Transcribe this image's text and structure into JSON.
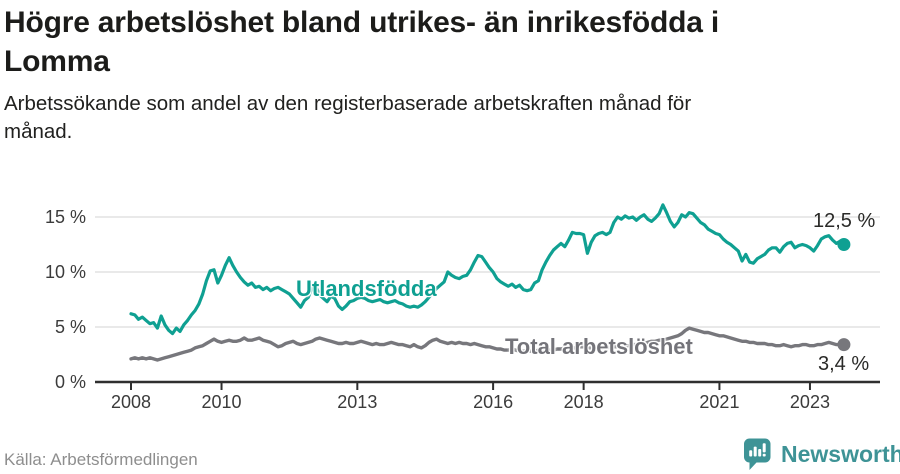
{
  "title": "Högre arbetslöshet bland utrikes- än inrikesfödda i\nLomma",
  "subtitle": "Arbetssökande som andel av den registerbaserade arbetskraften månad för\nmånad.",
  "source": "Källa: Arbetsförmedlingen",
  "branding": {
    "name": "Newsworthy",
    "icon": "newsworthy-bar-chart-bubble-icon",
    "color": "#3e9396"
  },
  "colors": {
    "foreign_born_accent": "#0fa092",
    "total_gray": "#77777c",
    "grid": "#dcdcdc",
    "axis": "#2f2f2f",
    "axis_text": "#3b3b3b",
    "value_text": "#2a2a28"
  },
  "chart_data": {
    "type": "line",
    "title": "Högre arbetslöshet bland utrikes- än inrikesfödda i Lomma",
    "xlabel": "",
    "ylabel": "Arbetssökande som andel av den registerbaserade arbetskraften",
    "x_monthly_start": "2008-01",
    "x_monthly_end": "2023-10",
    "x_tick_years": [
      2008,
      2010,
      2013,
      2016,
      2018,
      2021,
      2023
    ],
    "x_tick_labels": [
      "2008",
      "2010",
      "2013",
      "2016",
      "2018",
      "2021",
      "2023"
    ],
    "y_ticks": [
      0,
      5,
      10,
      15
    ],
    "y_tick_labels": [
      "0 %",
      "5 %",
      "10 %",
      "15 %"
    ],
    "ylim": [
      0,
      16.5
    ],
    "grid": "horizontal",
    "series": [
      {
        "name": "Utlandsfödda",
        "color": "#0fa092",
        "end_label": "12,5 %",
        "latest_value": 12.5,
        "values": [
          6.2,
          6.1,
          5.7,
          5.9,
          5.6,
          5.3,
          5.4,
          4.9,
          6.0,
          5.2,
          4.7,
          4.4,
          4.9,
          4.6,
          5.2,
          5.6,
          6.1,
          6.5,
          7.1,
          8.0,
          9.2,
          10.1,
          10.2,
          9.0,
          9.7,
          10.6,
          11.3,
          10.6,
          10.0,
          9.5,
          9.1,
          8.8,
          9.0,
          8.6,
          8.7,
          8.4,
          8.6,
          8.3,
          8.5,
          8.6,
          8.4,
          8.2,
          8.0,
          7.6,
          7.2,
          6.8,
          7.4,
          7.7,
          8.6,
          8.7,
          7.9,
          7.6,
          7.3,
          7.8,
          7.6,
          6.9,
          6.6,
          6.9,
          7.3,
          7.4,
          7.6,
          7.7,
          7.6,
          7.4,
          7.3,
          7.4,
          7.5,
          7.3,
          7.2,
          7.3,
          7.4,
          7.2,
          7.1,
          6.9,
          6.8,
          6.9,
          6.8,
          7.0,
          7.3,
          7.7,
          8.1,
          8.5,
          8.8,
          9.1,
          10.0,
          9.7,
          9.5,
          9.4,
          9.6,
          9.7,
          10.2,
          10.9,
          11.5,
          11.4,
          10.9,
          10.4,
          10.0,
          9.4,
          9.1,
          8.9,
          8.7,
          8.9,
          8.6,
          8.8,
          8.4,
          8.3,
          8.4,
          9.0,
          9.2,
          10.2,
          10.9,
          11.5,
          12.0,
          12.3,
          12.6,
          12.3,
          12.9,
          13.6,
          13.5,
          13.5,
          13.4,
          11.7,
          12.7,
          13.3,
          13.5,
          13.6,
          13.4,
          13.6,
          14.5,
          15.0,
          14.8,
          15.1,
          14.9,
          15.0,
          14.7,
          15.0,
          15.2,
          14.8,
          14.6,
          14.9,
          15.3,
          16.1,
          15.4,
          14.6,
          14.1,
          14.5,
          15.2,
          15.0,
          15.4,
          15.3,
          14.9,
          14.5,
          14.3,
          13.9,
          13.7,
          13.5,
          13.4,
          13.0,
          12.7,
          12.5,
          12.2,
          11.9,
          11.0,
          11.6,
          10.9,
          10.8,
          11.2,
          11.4,
          11.6,
          12.0,
          12.2,
          12.2,
          11.8,
          12.3,
          12.6,
          12.7,
          12.2,
          12.4,
          12.5,
          12.4,
          12.2,
          11.9,
          12.4,
          13.0,
          13.2,
          13.3,
          12.9,
          12.6,
          12.8,
          12.5
        ]
      },
      {
        "name": "Total arbetslöshet",
        "color": "#77777c",
        "end_label": "3,4 %",
        "latest_value": 3.4,
        "values": [
          2.1,
          2.2,
          2.1,
          2.2,
          2.1,
          2.2,
          2.1,
          2.0,
          2.1,
          2.2,
          2.3,
          2.4,
          2.5,
          2.6,
          2.7,
          2.8,
          2.9,
          3.1,
          3.2,
          3.3,
          3.5,
          3.7,
          3.9,
          3.7,
          3.6,
          3.7,
          3.8,
          3.7,
          3.7,
          3.8,
          4.0,
          3.8,
          3.8,
          3.9,
          4.0,
          3.8,
          3.7,
          3.6,
          3.4,
          3.2,
          3.3,
          3.5,
          3.6,
          3.7,
          3.5,
          3.4,
          3.5,
          3.6,
          3.7,
          3.9,
          4.0,
          3.9,
          3.8,
          3.7,
          3.6,
          3.5,
          3.5,
          3.6,
          3.5,
          3.5,
          3.6,
          3.7,
          3.6,
          3.5,
          3.4,
          3.5,
          3.4,
          3.4,
          3.5,
          3.6,
          3.5,
          3.4,
          3.4,
          3.3,
          3.2,
          3.4,
          3.2,
          3.1,
          3.3,
          3.6,
          3.8,
          3.9,
          3.7,
          3.6,
          3.5,
          3.6,
          3.5,
          3.6,
          3.5,
          3.5,
          3.4,
          3.5,
          3.4,
          3.3,
          3.2,
          3.2,
          3.1,
          3.0,
          3.0,
          2.9,
          2.9,
          3.0,
          2.9,
          2.8,
          2.8,
          2.9,
          2.8,
          2.8,
          2.9,
          2.9,
          3.0,
          2.9,
          2.9,
          3.0,
          3.0,
          3.1,
          3.0,
          3.1,
          3.1,
          3.2,
          3.2,
          3.1,
          3.1,
          3.0,
          3.1,
          3.1,
          3.2,
          3.1,
          3.2,
          3.2,
          3.3,
          3.3,
          3.3,
          3.4,
          3.4,
          3.5,
          3.5,
          3.6,
          3.7,
          3.7,
          3.8,
          3.8,
          3.9,
          4.0,
          4.1,
          4.2,
          4.4,
          4.7,
          4.9,
          4.8,
          4.7,
          4.6,
          4.5,
          4.5,
          4.4,
          4.3,
          4.2,
          4.2,
          4.1,
          4.0,
          3.9,
          3.8,
          3.7,
          3.7,
          3.6,
          3.6,
          3.5,
          3.5,
          3.5,
          3.4,
          3.4,
          3.3,
          3.3,
          3.4,
          3.3,
          3.2,
          3.3,
          3.3,
          3.4,
          3.4,
          3.3,
          3.3,
          3.4,
          3.4,
          3.5,
          3.6,
          3.5,
          3.4,
          3.4,
          3.4
        ]
      }
    ]
  }
}
